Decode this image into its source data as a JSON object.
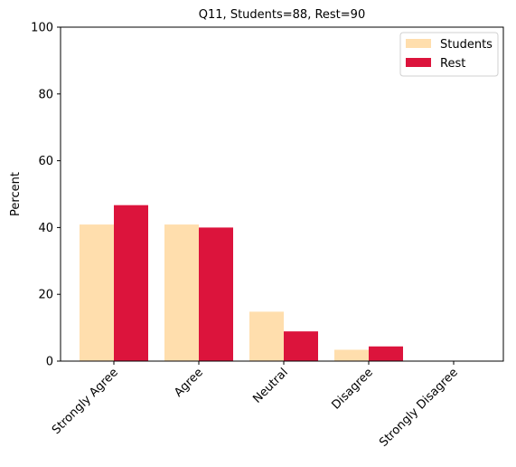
{
  "chart_data": {
    "type": "bar",
    "title": "Q11, Students=88, Rest=90",
    "xlabel": "",
    "ylabel": "Percent",
    "ylim": [
      0,
      100
    ],
    "yticks": [
      0,
      20,
      40,
      60,
      80,
      100
    ],
    "grid": false,
    "legend_position": "top-right",
    "categories": [
      "Strongly Agree",
      "Agree",
      "Neutral",
      "Disagree",
      "Strongly Disagree"
    ],
    "series": [
      {
        "name": "Students",
        "color": "#FFDEAD",
        "values": [
          40.9,
          40.9,
          14.8,
          3.4,
          0.0
        ]
      },
      {
        "name": "Rest",
        "color": "#DC143C",
        "values": [
          46.7,
          40.0,
          8.9,
          4.4,
          0.0
        ]
      }
    ]
  }
}
